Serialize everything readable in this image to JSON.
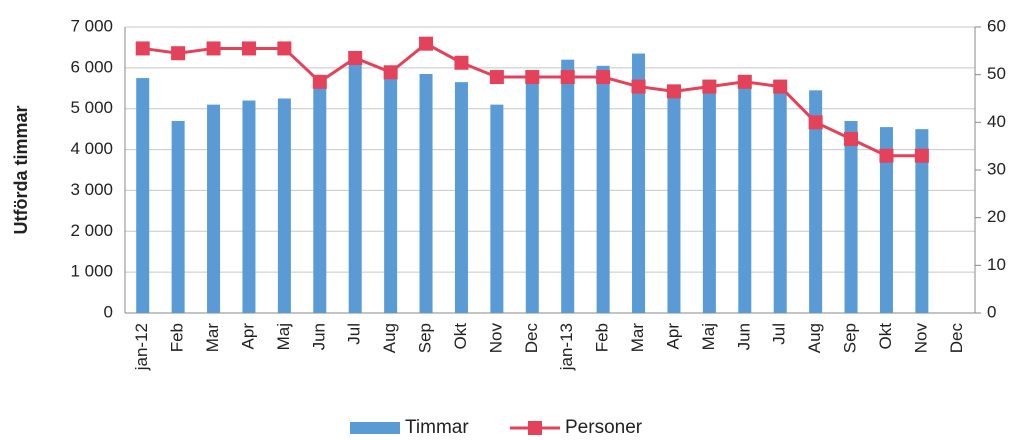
{
  "chart_data": {
    "type": "bar",
    "ylabel": "Utförda timmar",
    "categories": [
      "jan-12",
      "Feb",
      "Mar",
      "Apr",
      "Maj",
      "Jun",
      "Jul",
      "Aug",
      "Sep",
      "Okt",
      "Nov",
      "Dec",
      "jan-13",
      "Feb",
      "Mar",
      "Apr",
      "Maj",
      "Jun",
      "Jul",
      "Aug",
      "Sep",
      "Okt",
      "Nov",
      "Dec"
    ],
    "series": [
      {
        "name": "Timmar",
        "type": "bar",
        "color": "#5b9bd5",
        "values": [
          5750,
          4700,
          5100,
          5200,
          5250,
          5600,
          6200,
          5900,
          5850,
          5650,
          5100,
          5900,
          6200,
          6050,
          6350,
          5500,
          5500,
          5600,
          5500,
          5450,
          4700,
          4550,
          4500,
          null
        ]
      },
      {
        "name": "Personer",
        "type": "line",
        "axis": "y2",
        "color": "#e3425a",
        "values": [
          55.5,
          54.5,
          55.5,
          55.5,
          55.5,
          48.5,
          53.5,
          50.5,
          56.5,
          52.5,
          49.5,
          49.5,
          49.5,
          49.5,
          47.5,
          46.5,
          47.5,
          48.5,
          47.5,
          40,
          36.5,
          33,
          33,
          null
        ]
      }
    ],
    "ylim": [
      0,
      7000
    ],
    "yticks": [
      0,
      {
        "value": 1000,
        "label": "1 000"
      },
      {
        "value": 2000,
        "label": "2 000"
      },
      {
        "value": 3000,
        "label": "3 000"
      },
      {
        "value": 4000,
        "label": "4 000"
      },
      {
        "value": 5000,
        "label": "5 000"
      },
      {
        "value": 6000,
        "label": "6 000"
      },
      {
        "value": 7000,
        "label": "7 000"
      }
    ],
    "y2lim": [
      0,
      60
    ],
    "y2ticks": [
      0,
      10,
      20,
      30,
      40,
      50,
      60
    ],
    "grid": true,
    "legend": "bottom"
  }
}
